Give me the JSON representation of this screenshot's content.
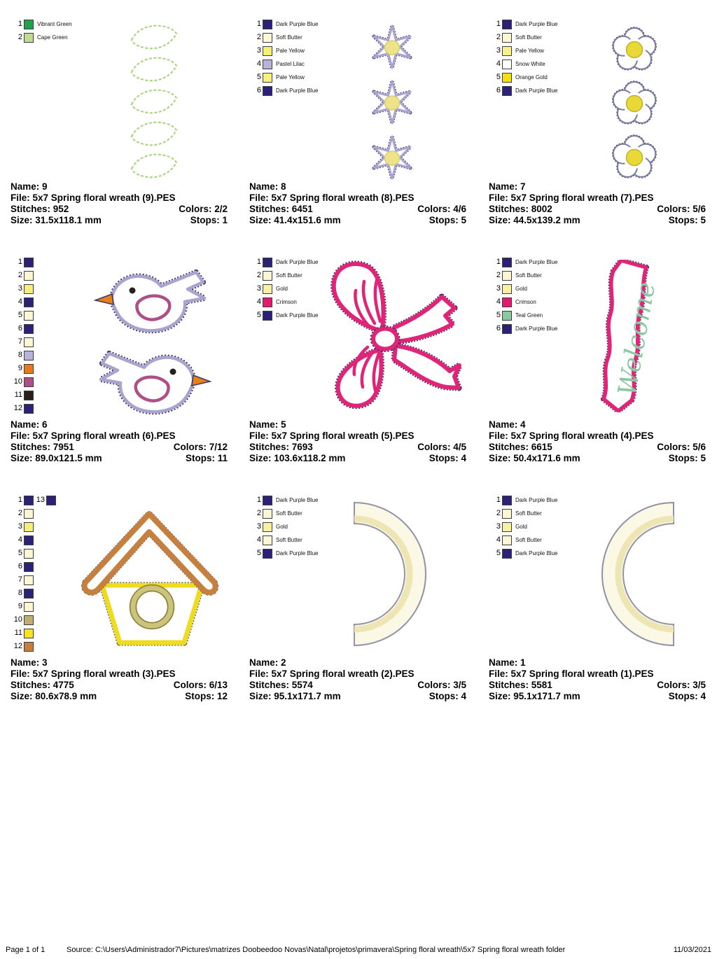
{
  "footer": {
    "page_label": "Page 1 of 1",
    "source": "Source: C:\\Users\\Administrador7\\Pictures\\matrizes Doobeedoo Novas\\Natal\\projetos\\primavera\\Spring floral wreath\\5x7 Spring floral wreath folder",
    "date": "11/03/2021"
  },
  "cells": [
    {
      "design": "leaves",
      "color_rows": [
        [
          {
            "num": "1",
            "hex": "#22A04A",
            "label": "Vibrant Green"
          }
        ],
        [
          {
            "num": "2",
            "hex": "#BFDD8E",
            "label": "Cape Green"
          }
        ]
      ],
      "info": {
        "name": "Name: 9",
        "file": "File: 5x7 Spring floral wreath (9).PES",
        "stitches": "Stitches: 952",
        "colors": "Colors: 2/2",
        "size": "Size: 31.5x118.1 mm",
        "stops": "Stops: 1"
      }
    },
    {
      "design": "star-flowers",
      "color_rows": [
        [
          {
            "num": "1",
            "hex": "#2B2176",
            "label": "Dark Purple Blue"
          }
        ],
        [
          {
            "num": "2",
            "hex": "#FCF6D4",
            "label": "Soft Butter"
          }
        ],
        [
          {
            "num": "3",
            "hex": "#F5EE79",
            "label": "Pale Yellow"
          }
        ],
        [
          {
            "num": "4",
            "hex": "#B8B3DA",
            "label": "Pastel Lilac"
          }
        ],
        [
          {
            "num": "5",
            "hex": "#F8F083",
            "label": "Pale Yellow"
          }
        ],
        [
          {
            "num": "6",
            "hex": "#2B2176",
            "label": "Dark Purple Blue"
          }
        ]
      ],
      "info": {
        "name": "Name: 8",
        "file": "File: 5x7 Spring floral wreath (8).PES",
        "stitches": "Stitches: 6451",
        "colors": "Colors: 4/6",
        "size": "Size: 41.4x151.6 mm",
        "stops": "Stops: 5"
      }
    },
    {
      "design": "daisies",
      "color_rows": [
        [
          {
            "num": "1",
            "hex": "#2B2176",
            "label": "Dark Purple Blue"
          }
        ],
        [
          {
            "num": "2",
            "hex": "#FCF6D4",
            "label": "Soft Butter"
          }
        ],
        [
          {
            "num": "3",
            "hex": "#F8EF8E",
            "label": "Pale Yellow"
          }
        ],
        [
          {
            "num": "4",
            "hex": "#FFFFFF",
            "label": "Snow White"
          }
        ],
        [
          {
            "num": "5",
            "hex": "#F4E00F",
            "label": "Orange Gold"
          }
        ],
        [
          {
            "num": "6",
            "hex": "#2B2176",
            "label": "Dark Purple Blue"
          }
        ]
      ],
      "info": {
        "name": "Name: 7",
        "file": "File: 5x7 Spring floral wreath (7).PES",
        "stitches": "Stitches: 8002",
        "colors": "Colors: 5/6",
        "size": "Size: 44.5x139.2 mm",
        "stops": "Stops: 5"
      }
    },
    {
      "design": "birds",
      "color_rows": [
        [
          {
            "num": "1",
            "hex": "#2B2176",
            "label": ""
          }
        ],
        [
          {
            "num": "2",
            "hex": "#FCF6D4",
            "label": ""
          }
        ],
        [
          {
            "num": "3",
            "hex": "#F5EE79",
            "label": ""
          }
        ],
        [
          {
            "num": "4",
            "hex": "#2B2176",
            "label": ""
          }
        ],
        [
          {
            "num": "5",
            "hex": "#FCF6D4",
            "label": ""
          }
        ],
        [
          {
            "num": "6",
            "hex": "#2B2176",
            "label": ""
          }
        ],
        [
          {
            "num": "7",
            "hex": "#FCF6D4",
            "label": ""
          }
        ],
        [
          {
            "num": "8",
            "hex": "#B8B3DA",
            "label": ""
          }
        ],
        [
          {
            "num": "9",
            "hex": "#E87818",
            "label": ""
          }
        ],
        [
          {
            "num": "10",
            "hex": "#AE5088",
            "label": ""
          }
        ],
        [
          {
            "num": "11",
            "hex": "#26211F",
            "label": ""
          }
        ],
        [
          {
            "num": "12",
            "hex": "#2B2176",
            "label": ""
          }
        ]
      ],
      "info": {
        "name": "Name: 6",
        "file": "File: 5x7 Spring floral wreath (6).PES",
        "stitches": "Stitches: 7951",
        "colors": "Colors: 7/12",
        "size": "Size: 89.0x121.5 mm",
        "stops": "Stops: 11"
      }
    },
    {
      "design": "bow",
      "color_rows": [
        [
          {
            "num": "1",
            "hex": "#2B2176",
            "label": "Dark Purple Blue"
          }
        ],
        [
          {
            "num": "2",
            "hex": "#FCF6D4",
            "label": "Soft Butter"
          }
        ],
        [
          {
            "num": "3",
            "hex": "#F8F0A4",
            "label": "Gold"
          }
        ],
        [
          {
            "num": "4",
            "hex": "#E41A70",
            "label": "Crimson"
          }
        ],
        [
          {
            "num": "5",
            "hex": "#2B2176",
            "label": "Dark Purple Blue"
          }
        ]
      ],
      "info": {
        "name": "Name: 5",
        "file": "File: 5x7 Spring floral wreath (5).PES",
        "stitches": "Stitches: 7693",
        "colors": "Colors: 4/5",
        "size": "Size: 103.6x118.2 mm",
        "stops": "Stops: 4"
      }
    },
    {
      "design": "welcome-banner",
      "design_text": "Welcome",
      "color_rows": [
        [
          {
            "num": "1",
            "hex": "#2B2176",
            "label": "Dark Purple Blue"
          }
        ],
        [
          {
            "num": "2",
            "hex": "#FCF6D4",
            "label": "Soft Butter"
          }
        ],
        [
          {
            "num": "3",
            "hex": "#F8F0A4",
            "label": "Gold"
          }
        ],
        [
          {
            "num": "4",
            "hex": "#E41A70",
            "label": "Crimson"
          }
        ],
        [
          {
            "num": "5",
            "hex": "#8BC8A2",
            "label": "Teal Green"
          }
        ],
        [
          {
            "num": "6",
            "hex": "#2B2176",
            "label": "Dark Purple Blue"
          }
        ]
      ],
      "info": {
        "name": "Name: 4",
        "file": "File: 5x7 Spring floral wreath (4).PES",
        "stitches": "Stitches: 6615",
        "colors": "Colors: 5/6",
        "size": "Size: 50.4x171.6 mm",
        "stops": "Stops: 5"
      }
    },
    {
      "design": "birdhouse",
      "color_rows": [
        [
          {
            "num": "1",
            "hex": "#2B2176",
            "label": ""
          },
          {
            "num": "13",
            "hex": "#2B2176",
            "label": ""
          }
        ],
        [
          {
            "num": "2",
            "hex": "#FCF6D4",
            "label": ""
          }
        ],
        [
          {
            "num": "3",
            "hex": "#F5EE79",
            "label": ""
          }
        ],
        [
          {
            "num": "4",
            "hex": "#2B2176",
            "label": ""
          }
        ],
        [
          {
            "num": "5",
            "hex": "#FCF6D4",
            "label": ""
          }
        ],
        [
          {
            "num": "6",
            "hex": "#2B2176",
            "label": ""
          }
        ],
        [
          {
            "num": "7",
            "hex": "#FCF6D4",
            "label": ""
          }
        ],
        [
          {
            "num": "8",
            "hex": "#2B2176",
            "label": ""
          }
        ],
        [
          {
            "num": "9",
            "hex": "#FCF6D4",
            "label": ""
          }
        ],
        [
          {
            "num": "10",
            "hex": "#BFAE6E",
            "label": ""
          }
        ],
        [
          {
            "num": "11",
            "hex": "#F6E51C",
            "label": ""
          }
        ],
        [
          {
            "num": "12",
            "hex": "#C5803F",
            "label": ""
          }
        ]
      ],
      "info": {
        "name": "Name: 3",
        "file": "File: 5x7 Spring floral wreath (3).PES",
        "stitches": "Stitches: 4775",
        "colors": "Colors: 6/13",
        "size": "Size: 80.6x78.9 mm",
        "stops": "Stops: 12"
      }
    },
    {
      "design": "arc-opening-left",
      "color_rows": [
        [
          {
            "num": "1",
            "hex": "#2B2176",
            "label": "Dark Purple Blue"
          }
        ],
        [
          {
            "num": "2",
            "hex": "#FCF6D4",
            "label": "Soft Butter"
          }
        ],
        [
          {
            "num": "3",
            "hex": "#F8F0A4",
            "label": "Gold"
          }
        ],
        [
          {
            "num": "4",
            "hex": "#FCF6D4",
            "label": "Soft Butter"
          }
        ],
        [
          {
            "num": "5",
            "hex": "#2B2176",
            "label": "Dark Purple Blue"
          }
        ]
      ],
      "info": {
        "name": "Name: 2",
        "file": "File: 5x7 Spring floral wreath (2).PES",
        "stitches": "Stitches: 5574",
        "colors": "Colors: 3/5",
        "size": "Size: 95.1x171.7 mm",
        "stops": "Stops: 4"
      }
    },
    {
      "design": "arc-opening-right",
      "color_rows": [
        [
          {
            "num": "1",
            "hex": "#2B2176",
            "label": "Dark Purple Blue"
          }
        ],
        [
          {
            "num": "2",
            "hex": "#FCF6D4",
            "label": "Soft Butter"
          }
        ],
        [
          {
            "num": "3",
            "hex": "#F8F0A4",
            "label": "Gold"
          }
        ],
        [
          {
            "num": "4",
            "hex": "#FCF6D4",
            "label": "Soft Butter"
          }
        ],
        [
          {
            "num": "5",
            "hex": "#2B2176",
            "label": "Dark Purple Blue"
          }
        ]
      ],
      "info": {
        "name": "Name: 1",
        "file": "File: 5x7 Spring floral wreath (1).PES",
        "stitches": "Stitches: 5581",
        "colors": "Colors: 3/5",
        "size": "Size: 95.1x171.7 mm",
        "stops": "Stops: 4"
      }
    }
  ]
}
